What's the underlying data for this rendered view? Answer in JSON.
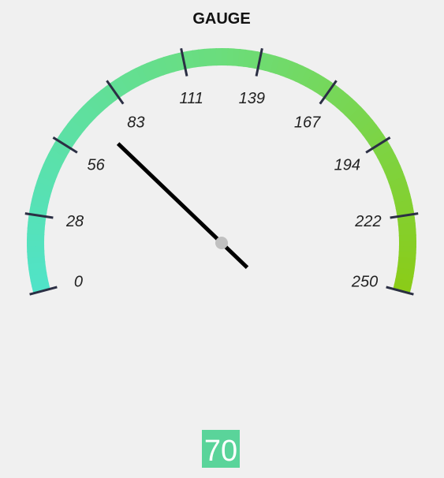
{
  "chart_data": {
    "type": "gauge",
    "title": "GAUGE",
    "min": 0,
    "max": 250,
    "value": 70,
    "readout": "70",
    "ticks": [
      {
        "value": 0,
        "label": "0"
      },
      {
        "value": 28,
        "label": "28"
      },
      {
        "value": 56,
        "label": "56"
      },
      {
        "value": 83,
        "label": "83"
      },
      {
        "value": 111,
        "label": "111"
      },
      {
        "value": 139,
        "label": "139"
      },
      {
        "value": 167,
        "label": "167"
      },
      {
        "value": 194,
        "label": "194"
      },
      {
        "value": 222,
        "label": "222"
      },
      {
        "value": 250,
        "label": "250"
      }
    ],
    "colors": {
      "band_start": "#50e3c8",
      "band_mid": "#6bdd7c",
      "band_end": "#8bcc18",
      "tick": "#2b2f44",
      "needle": "#000000",
      "pivot": "#c0c0c0",
      "readout_background": "#5ad49a",
      "readout_text": "#ffffff",
      "background": "#f0f0f0"
    }
  }
}
